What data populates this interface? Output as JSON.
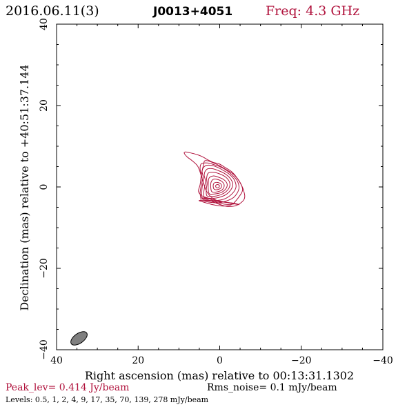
{
  "header": {
    "date": "2016.06.11(3)",
    "source": "J0013+4051",
    "freq": "Freq: 4.3 GHz"
  },
  "footer": {
    "peak": "Peak_lev=  0.414 Jy/beam",
    "rms": "Rms_noise=  0.1 mJy/beam",
    "levels": "Levels: 0.5,    1,    2,    4,    9,   17,   35,   70, 139, 278 mJy/beam"
  },
  "colors": {
    "contour": "#b0123c",
    "frame": "#000000",
    "beam": "#808080"
  },
  "chart_data": {
    "type": "contour",
    "xlabel": "Right ascension (mas) relative to 00:13:31.1302",
    "ylabel": "Declination (mas) relative to +40:51:37.144",
    "xlim": [
      40,
      -40
    ],
    "ylim": [
      -40,
      40
    ],
    "xticks": [
      "40",
      "20",
      "0",
      "−20",
      "−40"
    ],
    "yticks": [
      "−40",
      "−20",
      "0",
      "20",
      "40"
    ],
    "peak_jy_per_beam": 0.414,
    "rms_mjy_per_beam": 0.1,
    "levels_mjy_per_beam": [
      0.5,
      1,
      2,
      4,
      9,
      17,
      35,
      70,
      139,
      278
    ],
    "contours": [
      {
        "level": 0.5,
        "points": [
          [
            4.0,
            -2.7
          ],
          [
            2.5,
            -3.3
          ],
          [
            0.0,
            -4.3
          ],
          [
            -2.0,
            -4.8
          ],
          [
            -4.2,
            -4.5
          ],
          [
            -6.0,
            -3.0
          ],
          [
            -5.9,
            -1.0
          ],
          [
            -4.9,
            1.2
          ],
          [
            -3.2,
            3.5
          ],
          [
            -1.3,
            4.8
          ],
          [
            0.2,
            5.7
          ],
          [
            1.5,
            6.0
          ],
          [
            3.0,
            6.7
          ],
          [
            4.0,
            7.3
          ],
          [
            5.4,
            7.9
          ],
          [
            7.3,
            8.4
          ],
          [
            8.4,
            8.6
          ],
          [
            8.7,
            8.3
          ],
          [
            8.0,
            7.4
          ],
          [
            6.7,
            6.4
          ],
          [
            5.4,
            5.1
          ],
          [
            4.6,
            3.0
          ],
          [
            4.0,
            1.0
          ],
          [
            3.3,
            -0.9
          ],
          [
            2.3,
            -2.3
          ],
          [
            1.0,
            -3.2
          ],
          [
            0.0,
            -3.5
          ],
          [
            -1.5,
            -3.8
          ],
          [
            -3.5,
            -4.0
          ],
          [
            -4.3,
            -4.3
          ]
        ]
      },
      {
        "level": 1,
        "points": [
          [
            4.8,
            -3.3
          ],
          [
            3.0,
            -4.0
          ],
          [
            1.0,
            -4.5
          ],
          [
            -1.0,
            -4.7
          ],
          [
            -3.0,
            -4.3
          ],
          [
            -4.6,
            -2.6
          ],
          [
            -5.6,
            -0.8
          ],
          [
            -5.0,
            1.1
          ],
          [
            -3.5,
            3.0
          ],
          [
            -2.2,
            3.9
          ],
          [
            -1.0,
            4.6
          ],
          [
            0.2,
            5.3
          ],
          [
            1.3,
            5.8
          ],
          [
            2.8,
            6.4
          ],
          [
            3.7,
            6.4
          ],
          [
            4.0,
            5.3
          ],
          [
            4.5,
            3.0
          ],
          [
            4.8,
            0.6
          ],
          [
            5.2,
            -1.1
          ],
          [
            4.3,
            -2.2
          ],
          [
            2.7,
            -2.8
          ],
          [
            1.2,
            -3.6
          ],
          [
            0.0,
            -4.0
          ],
          [
            -2.0,
            -4.3
          ],
          [
            -3.4,
            -4.0
          ]
        ]
      },
      {
        "level": 2,
        "points": [
          [
            4.5,
            -3.3
          ],
          [
            2.8,
            -3.7
          ],
          [
            0.5,
            -3.9
          ],
          [
            -1.5,
            -3.5
          ],
          [
            -3.5,
            -2.5
          ],
          [
            -4.7,
            -0.5
          ],
          [
            -4.3,
            1.5
          ],
          [
            -3.0,
            3.0
          ],
          [
            -1.5,
            4.2
          ],
          [
            0.0,
            5.0
          ],
          [
            1.5,
            5.5
          ],
          [
            3.0,
            5.9
          ],
          [
            4.5,
            5.7
          ],
          [
            4.8,
            4.3
          ],
          [
            4.3,
            2.0
          ],
          [
            4.6,
            0.0
          ],
          [
            4.8,
            -1.5
          ],
          [
            4.6,
            -3.0
          ]
        ]
      },
      {
        "level": 4,
        "points": [
          [
            4.2,
            -3.0
          ],
          [
            2.5,
            -3.3
          ],
          [
            0.5,
            -3.3
          ],
          [
            -1.5,
            -2.8
          ],
          [
            -3.2,
            -1.5
          ],
          [
            -4.0,
            0.0
          ],
          [
            -3.6,
            1.7
          ],
          [
            -2.5,
            3.0
          ],
          [
            -1.0,
            4.0
          ],
          [
            0.5,
            4.8
          ],
          [
            2.0,
            5.3
          ],
          [
            3.5,
            5.2
          ],
          [
            4.3,
            4.0
          ],
          [
            4.0,
            2.0
          ],
          [
            4.3,
            0.0
          ],
          [
            4.4,
            -1.7
          ]
        ]
      },
      {
        "level": 9,
        "points": [
          [
            3.7,
            -2.6
          ],
          [
            2.0,
            -2.8
          ],
          [
            0.3,
            -2.6
          ],
          [
            -1.5,
            -1.9
          ],
          [
            -2.8,
            -0.6
          ],
          [
            -3.2,
            0.8
          ],
          [
            -2.5,
            2.2
          ],
          [
            -1.2,
            3.3
          ],
          [
            0.3,
            4.0
          ],
          [
            1.8,
            4.5
          ],
          [
            3.2,
            4.3
          ],
          [
            3.8,
            3.0
          ],
          [
            3.5,
            1.5
          ],
          [
            3.7,
            0.0
          ],
          [
            3.9,
            -1.4
          ]
        ]
      },
      {
        "level": 17,
        "points": [
          [
            3.1,
            -2.2
          ],
          [
            1.5,
            -2.3
          ],
          [
            0.0,
            -2.0
          ],
          [
            -1.5,
            -1.2
          ],
          [
            -2.4,
            0.0
          ],
          [
            -2.4,
            1.2
          ],
          [
            -1.5,
            2.4
          ],
          [
            0.0,
            3.2
          ],
          [
            1.5,
            3.6
          ],
          [
            2.8,
            3.4
          ],
          [
            3.2,
            2.2
          ],
          [
            3.1,
            0.8
          ],
          [
            3.3,
            -0.8
          ]
        ]
      },
      {
        "level": 35,
        "points": [
          [
            2.5,
            -1.7
          ],
          [
            1.0,
            -1.7
          ],
          [
            -0.5,
            -1.3
          ],
          [
            -1.6,
            -0.3
          ],
          [
            -1.8,
            0.8
          ],
          [
            -1.0,
            1.8
          ],
          [
            0.3,
            2.4
          ],
          [
            1.6,
            2.7
          ],
          [
            2.6,
            2.2
          ],
          [
            2.8,
            0.9
          ],
          [
            2.8,
            -0.6
          ]
        ]
      },
      {
        "level": 70,
        "points": [
          [
            1.9,
            -1.2
          ],
          [
            0.6,
            -1.2
          ],
          [
            -0.6,
            -0.7
          ],
          [
            -1.1,
            0.3
          ],
          [
            -0.7,
            1.2
          ],
          [
            0.4,
            1.8
          ],
          [
            1.5,
            1.9
          ],
          [
            2.1,
            1.2
          ],
          [
            2.2,
            0.0
          ]
        ]
      },
      {
        "level": 139,
        "points": [
          [
            1.3,
            -0.6
          ],
          [
            0.3,
            -0.6
          ],
          [
            -0.4,
            -0.1
          ],
          [
            -0.3,
            0.7
          ],
          [
            0.5,
            1.1
          ],
          [
            1.3,
            1.0
          ],
          [
            1.6,
            0.3
          ]
        ]
      },
      {
        "level": 278,
        "points": [
          [
            0.8,
            -0.2
          ],
          [
            0.2,
            -0.1
          ],
          [
            0.1,
            0.4
          ],
          [
            0.6,
            0.6
          ],
          [
            1.0,
            0.3
          ]
        ]
      }
    ],
    "beam": {
      "center": [
        34.5,
        -37.2
      ],
      "major_mas": 4.6,
      "minor_mas": 2.4,
      "pa_deg": 35
    }
  }
}
